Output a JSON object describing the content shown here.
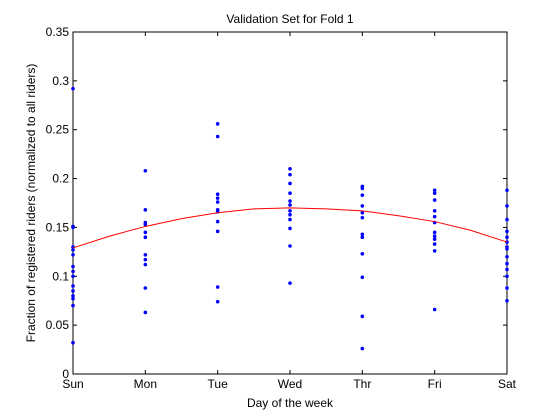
{
  "chart_data": {
    "type": "scatter",
    "title": "Validation Set for Fold 1",
    "xlabel": "Day of the week",
    "ylabel": "Fraction of registered riders (normalized to all riders)",
    "categories": [
      "Sun",
      "Mon",
      "Tue",
      "Wed",
      "Thr",
      "Fri",
      "Sat"
    ],
    "xlim": [
      0,
      6
    ],
    "ylim": [
      0,
      0.35
    ],
    "yticks": [
      0,
      0.05,
      0.1,
      0.15,
      0.2,
      0.25,
      0.3,
      0.35
    ],
    "ytick_labels": [
      "0",
      "0.05",
      "0.1",
      "0.15",
      "0.2",
      "0.25",
      "0.3",
      "0.35"
    ],
    "grid": false,
    "colors": {
      "points": "#0000ff",
      "fit": "#ff0000"
    },
    "points": [
      {
        "x": 0,
        "y": 0.292
      },
      {
        "x": 0,
        "y": 0.151
      },
      {
        "x": 0,
        "y": 0.15
      },
      {
        "x": 0,
        "y": 0.13
      },
      {
        "x": 0,
        "y": 0.127
      },
      {
        "x": 0,
        "y": 0.122
      },
      {
        "x": 0,
        "y": 0.11
      },
      {
        "x": 0,
        "y": 0.105
      },
      {
        "x": 0,
        "y": 0.1
      },
      {
        "x": 0,
        "y": 0.09
      },
      {
        "x": 0,
        "y": 0.085
      },
      {
        "x": 0,
        "y": 0.08
      },
      {
        "x": 0,
        "y": 0.077
      },
      {
        "x": 0,
        "y": 0.07
      },
      {
        "x": 0,
        "y": 0.032
      },
      {
        "x": 1,
        "y": 0.208
      },
      {
        "x": 1,
        "y": 0.168
      },
      {
        "x": 1,
        "y": 0.155
      },
      {
        "x": 1,
        "y": 0.153
      },
      {
        "x": 1,
        "y": 0.145
      },
      {
        "x": 1,
        "y": 0.14
      },
      {
        "x": 1,
        "y": 0.122
      },
      {
        "x": 1,
        "y": 0.117
      },
      {
        "x": 1,
        "y": 0.112
      },
      {
        "x": 1,
        "y": 0.088
      },
      {
        "x": 1,
        "y": 0.063
      },
      {
        "x": 2,
        "y": 0.256
      },
      {
        "x": 2,
        "y": 0.243
      },
      {
        "x": 2,
        "y": 0.184
      },
      {
        "x": 2,
        "y": 0.18
      },
      {
        "x": 2,
        "y": 0.176
      },
      {
        "x": 2,
        "y": 0.168
      },
      {
        "x": 2,
        "y": 0.166
      },
      {
        "x": 2,
        "y": 0.156
      },
      {
        "x": 2,
        "y": 0.146
      },
      {
        "x": 2,
        "y": 0.089
      },
      {
        "x": 2,
        "y": 0.074
      },
      {
        "x": 3,
        "y": 0.21
      },
      {
        "x": 3,
        "y": 0.204
      },
      {
        "x": 3,
        "y": 0.195
      },
      {
        "x": 3,
        "y": 0.185
      },
      {
        "x": 3,
        "y": 0.177
      },
      {
        "x": 3,
        "y": 0.173
      },
      {
        "x": 3,
        "y": 0.167
      },
      {
        "x": 3,
        "y": 0.163
      },
      {
        "x": 3,
        "y": 0.158
      },
      {
        "x": 3,
        "y": 0.149
      },
      {
        "x": 3,
        "y": 0.131
      },
      {
        "x": 3,
        "y": 0.093
      },
      {
        "x": 4,
        "y": 0.192
      },
      {
        "x": 4,
        "y": 0.19
      },
      {
        "x": 4,
        "y": 0.183
      },
      {
        "x": 4,
        "y": 0.172
      },
      {
        "x": 4,
        "y": 0.165
      },
      {
        "x": 4,
        "y": 0.16
      },
      {
        "x": 4,
        "y": 0.143
      },
      {
        "x": 4,
        "y": 0.14
      },
      {
        "x": 4,
        "y": 0.123
      },
      {
        "x": 4,
        "y": 0.099
      },
      {
        "x": 4,
        "y": 0.059
      },
      {
        "x": 4,
        "y": 0.026
      },
      {
        "x": 5,
        "y": 0.188
      },
      {
        "x": 5,
        "y": 0.185
      },
      {
        "x": 5,
        "y": 0.178
      },
      {
        "x": 5,
        "y": 0.167
      },
      {
        "x": 5,
        "y": 0.161
      },
      {
        "x": 5,
        "y": 0.155
      },
      {
        "x": 5,
        "y": 0.145
      },
      {
        "x": 5,
        "y": 0.141
      },
      {
        "x": 5,
        "y": 0.138
      },
      {
        "x": 5,
        "y": 0.133
      },
      {
        "x": 5,
        "y": 0.126
      },
      {
        "x": 5,
        "y": 0.066
      },
      {
        "x": 6,
        "y": 0.188
      },
      {
        "x": 6,
        "y": 0.172
      },
      {
        "x": 6,
        "y": 0.158
      },
      {
        "x": 6,
        "y": 0.146
      },
      {
        "x": 6,
        "y": 0.14
      },
      {
        "x": 6,
        "y": 0.135
      },
      {
        "x": 6,
        "y": 0.13
      },
      {
        "x": 6,
        "y": 0.128
      },
      {
        "x": 6,
        "y": 0.12
      },
      {
        "x": 6,
        "y": 0.113
      },
      {
        "x": 6,
        "y": 0.107
      },
      {
        "x": 6,
        "y": 0.1
      },
      {
        "x": 6,
        "y": 0.088
      },
      {
        "x": 6,
        "y": 0.075
      }
    ],
    "fit_line": {
      "x": [
        0,
        0.5,
        1,
        1.5,
        2,
        2.5,
        3,
        3.5,
        4,
        4.5,
        5,
        5.5,
        6
      ],
      "y": [
        0.129,
        0.141,
        0.151,
        0.159,
        0.165,
        0.169,
        0.17,
        0.169,
        0.167,
        0.162,
        0.156,
        0.147,
        0.135
      ]
    }
  }
}
